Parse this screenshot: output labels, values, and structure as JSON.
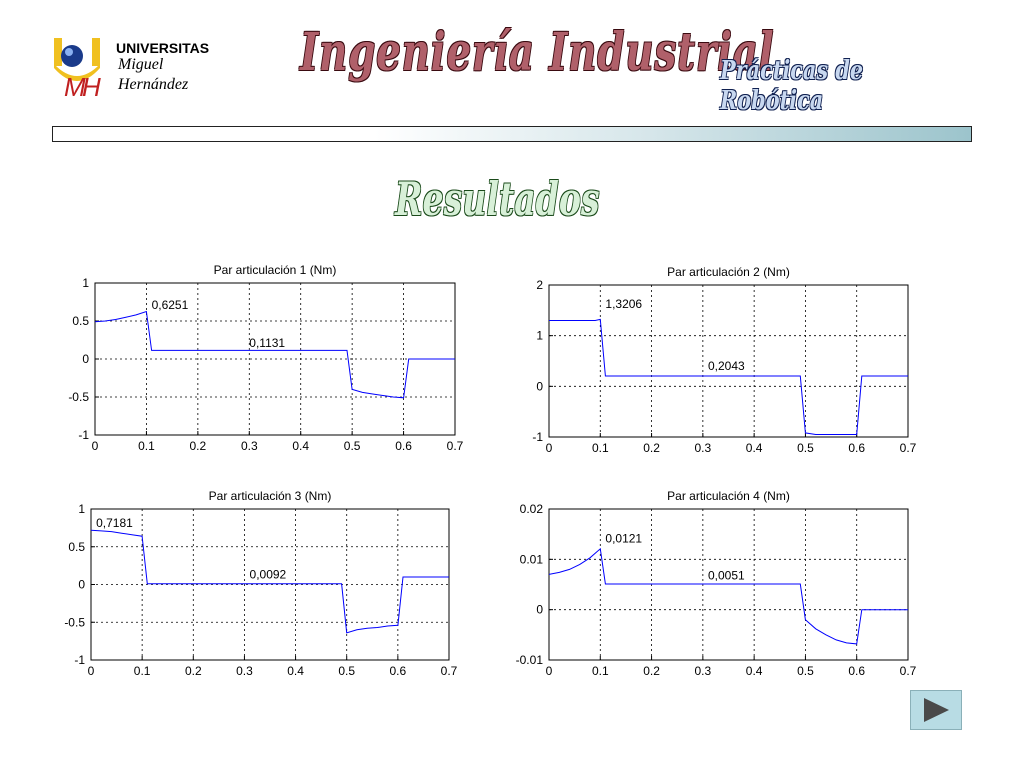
{
  "header": {
    "logo": {
      "line1": "UNIVERSITAS",
      "line2": "Miguel",
      "line3": "Hernández"
    },
    "title": "Ingeniería Industrial",
    "subtitle": "Prácticas de Robótica"
  },
  "section_title": "Resultados",
  "nav": {
    "next_icon": "play-triangle"
  },
  "colors": {
    "series": "#0000ff",
    "title_fill": "#b0606a",
    "subtitle_fill": "#c8d8f0",
    "section_fill": "#d8f0d8"
  },
  "chart_data": [
    {
      "type": "line",
      "title": "Par articulación 1 (Nm)",
      "xlim": [
        0,
        0.7
      ],
      "ylim": [
        -1,
        1
      ],
      "xticks": [
        "0",
        "0.1",
        "0.2",
        "0.3",
        "0.4",
        "0.5",
        "0.6",
        "0.7"
      ],
      "yticks": [
        "1",
        "0.5",
        "0",
        "-0.5",
        "-1"
      ],
      "grid": true,
      "x": [
        0,
        0.02,
        0.04,
        0.06,
        0.08,
        0.1,
        0.11,
        0.49,
        0.5,
        0.52,
        0.54,
        0.56,
        0.58,
        0.6,
        0.61,
        0.7
      ],
      "y": [
        0.49,
        0.5,
        0.52,
        0.55,
        0.58,
        0.6251,
        0.1131,
        0.1131,
        -0.4,
        -0.44,
        -0.46,
        -0.48,
        -0.5,
        -0.51,
        0,
        0
      ],
      "annotations": [
        {
          "x": 0.11,
          "y": 0.66,
          "text": "0,6251"
        },
        {
          "x": 0.3,
          "y": 0.16,
          "text": "0,1131"
        }
      ]
    },
    {
      "type": "line",
      "title": "Par articulación 2 (Nm)",
      "xlim": [
        0,
        0.7
      ],
      "ylim": [
        -1,
        2
      ],
      "xticks": [
        "0",
        "0.1",
        "0.2",
        "0.3",
        "0.4",
        "0.5",
        "0.6",
        "0.7"
      ],
      "yticks": [
        "2",
        "1",
        "0",
        "-1"
      ],
      "grid": true,
      "x": [
        0,
        0.09,
        0.1,
        0.11,
        0.49,
        0.5,
        0.52,
        0.6,
        0.61,
        0.7
      ],
      "y": [
        1.3,
        1.3,
        1.3206,
        0.2043,
        0.2043,
        -0.92,
        -0.95,
        -0.95,
        0.2043,
        0.2043
      ],
      "annotations": [
        {
          "x": 0.11,
          "y": 1.55,
          "text": "1,3206"
        },
        {
          "x": 0.31,
          "y": 0.32,
          "text": "0,2043"
        }
      ]
    },
    {
      "type": "line",
      "title": "Par articulación 3 (Nm)",
      "xlim": [
        0,
        0.7
      ],
      "ylim": [
        -1,
        1
      ],
      "xticks": [
        "0",
        "0.1",
        "0.2",
        "0.3",
        "0.4",
        "0.5",
        "0.6",
        "0.7"
      ],
      "yticks": [
        "1",
        "0.5",
        "0",
        "-0.5",
        "-1"
      ],
      "grid": true,
      "x": [
        0,
        0.02,
        0.04,
        0.06,
        0.08,
        0.1,
        0.11,
        0.49,
        0.5,
        0.52,
        0.54,
        0.56,
        0.58,
        0.6,
        0.61,
        0.7
      ],
      "y": [
        0.7181,
        0.71,
        0.7,
        0.68,
        0.66,
        0.64,
        0.0092,
        0.0092,
        -0.64,
        -0.6,
        -0.58,
        -0.57,
        -0.55,
        -0.54,
        0.1,
        0.1
      ],
      "annotations": [
        {
          "x": 0.01,
          "y": 0.76,
          "text": "0,7181"
        },
        {
          "x": 0.31,
          "y": 0.08,
          "text": "0,0092"
        }
      ]
    },
    {
      "type": "line",
      "title": "Par articulación 4 (Nm)",
      "xlim": [
        0,
        0.7
      ],
      "ylim": [
        -0.01,
        0.02
      ],
      "xticks": [
        "0",
        "0.1",
        "0.2",
        "0.3",
        "0.4",
        "0.5",
        "0.6",
        "0.7"
      ],
      "yticks": [
        "0.02",
        "0.01",
        "0",
        "-0.01"
      ],
      "grid": true,
      "x": [
        0,
        0.02,
        0.04,
        0.06,
        0.08,
        0.1,
        0.11,
        0.49,
        0.5,
        0.52,
        0.54,
        0.56,
        0.58,
        0.6,
        0.61,
        0.7
      ],
      "y": [
        0.007,
        0.0074,
        0.008,
        0.009,
        0.0103,
        0.0121,
        0.0051,
        0.0051,
        -0.002,
        -0.0038,
        -0.005,
        -0.006,
        -0.0066,
        -0.0068,
        0,
        0
      ],
      "annotations": [
        {
          "x": 0.11,
          "y": 0.0133,
          "text": "0,0121"
        },
        {
          "x": 0.31,
          "y": 0.006,
          "text": "0,0051"
        }
      ]
    }
  ]
}
